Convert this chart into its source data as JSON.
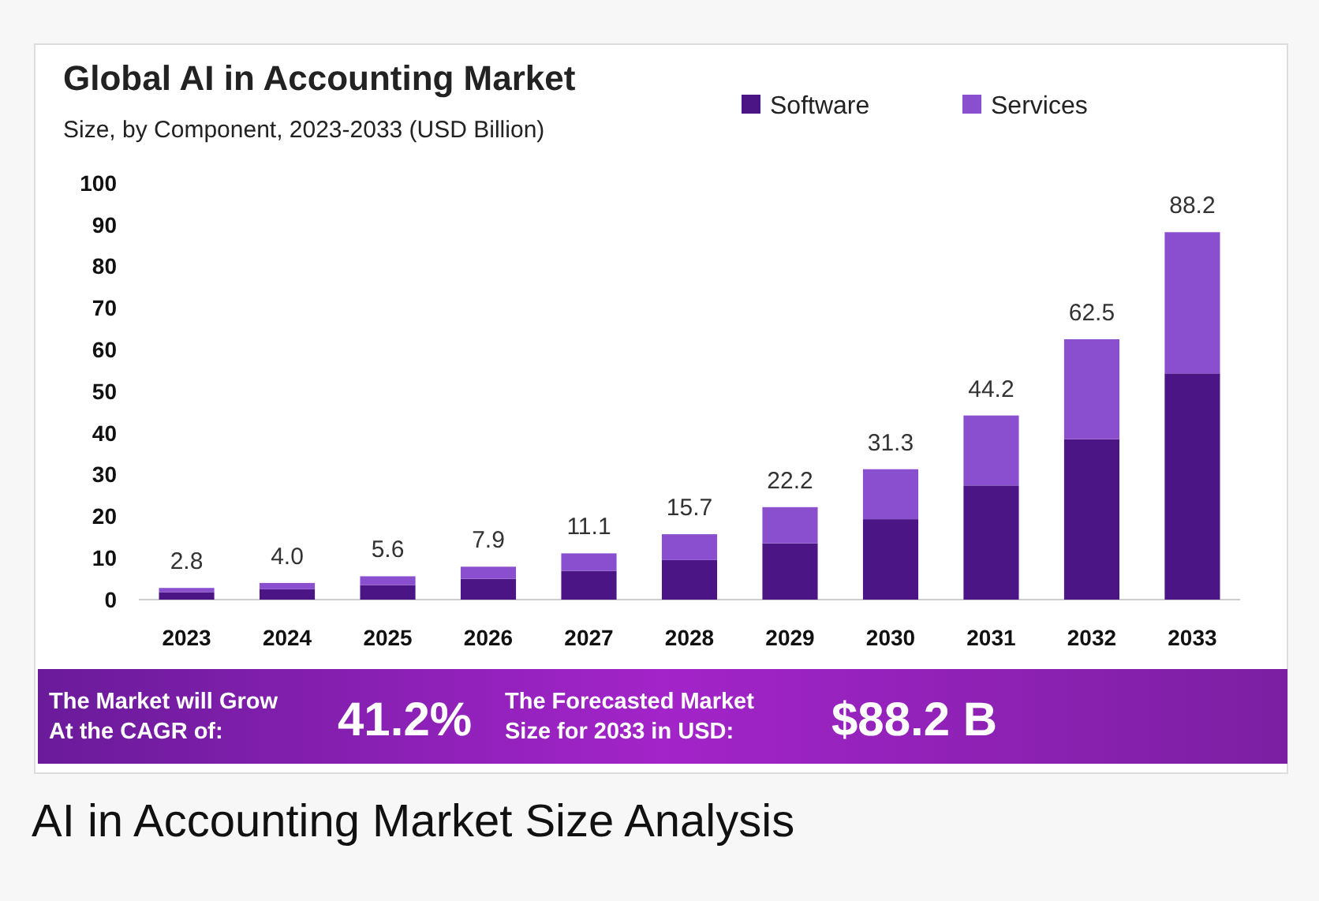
{
  "chart_data": {
    "type": "bar",
    "title": "Global AI in Accounting Market",
    "subtitle": "Size, by Component, 2023-2033 (USD Billion)",
    "categories": [
      "2023",
      "2024",
      "2025",
      "2026",
      "2027",
      "2028",
      "2029",
      "2030",
      "2031",
      "2032",
      "2033"
    ],
    "series": [
      {
        "name": "Software",
        "color": "#4b1585",
        "values": [
          1.8,
          2.5,
          3.5,
          5.0,
          6.9,
          9.5,
          13.5,
          19.3,
          27.4,
          38.5,
          54.3
        ]
      },
      {
        "name": "Services",
        "color": "#8a4fcf",
        "values": [
          1.0,
          1.5,
          2.1,
          2.9,
          4.2,
          6.2,
          8.7,
          12.0,
          16.8,
          24.0,
          33.9
        ]
      }
    ],
    "stacked": true,
    "totals": [
      "2.8",
      "4.0",
      "5.6",
      "7.9",
      "11.1",
      "15.7",
      "22.2",
      "31.3",
      "44.2",
      "62.5",
      "88.2"
    ],
    "ylim": [
      0,
      100
    ],
    "yticks": [
      0,
      10,
      20,
      30,
      40,
      50,
      60,
      70,
      80,
      90,
      100
    ],
    "grid": false,
    "legend": "top right",
    "annotations": [
      "The Market will Grow At the CAGR of:",
      "41.2%",
      "The Forecasted Market Size for 2033 in USD:",
      "$88.2 B",
      "AI in Accounting Market Size Analysis"
    ]
  }
}
